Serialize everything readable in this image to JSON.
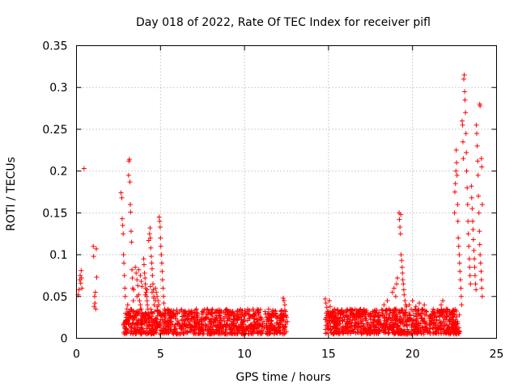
{
  "chart_data": {
    "type": "scatter",
    "title": "Day 018 of 2022, Rate Of TEC Index for receiver pifl",
    "xlabel": "GPS time / hours",
    "ylabel": "ROTI / TECUs",
    "xlim": [
      0,
      25
    ],
    "ylim": [
      0,
      0.35
    ],
    "xticks": [
      0,
      5,
      10,
      15,
      20,
      25
    ],
    "xtick_labels": [
      "0",
      "5",
      "10",
      "15",
      "20",
      "25"
    ],
    "yticks": [
      0,
      0.05,
      0.1,
      0.15,
      0.2,
      0.25,
      0.3,
      0.35
    ],
    "ytick_labels": [
      "0",
      "0.05",
      "0.1",
      "0.15",
      "0.2",
      "0.25",
      "0.3",
      "0.35"
    ],
    "grid": true,
    "marker": "+",
    "color": "#ff0000",
    "series": [
      {
        "name": "ROTI",
        "points": [
          [
            0.1,
            0.052
          ],
          [
            0.15,
            0.058
          ],
          [
            0.2,
            0.07
          ],
          [
            0.22,
            0.075
          ],
          [
            0.25,
            0.066
          ],
          [
            0.28,
            0.081
          ],
          [
            0.3,
            0.072
          ],
          [
            0.32,
            0.06
          ],
          [
            0.45,
            0.203
          ],
          [
            1.0,
            0.11
          ],
          [
            1.02,
            0.098
          ],
          [
            1.05,
            0.038
          ],
          [
            1.08,
            0.05
          ],
          [
            1.1,
            0.042
          ],
          [
            1.12,
            0.055
          ],
          [
            1.15,
            0.035
          ],
          [
            1.18,
            0.107
          ],
          [
            1.2,
            0.073
          ],
          [
            2.65,
            0.174
          ],
          [
            2.7,
            0.168
          ],
          [
            2.72,
            0.143
          ],
          [
            2.75,
            0.135
          ],
          [
            2.78,
            0.125
          ],
          [
            2.8,
            0.1
          ],
          [
            2.82,
            0.09
          ],
          [
            2.85,
            0.075
          ],
          [
            2.88,
            0.06
          ],
          [
            2.9,
            0.05
          ],
          [
            2.92,
            0.03
          ],
          [
            2.95,
            0.025
          ],
          [
            2.98,
            0.028
          ],
          [
            3.0,
            0.035
          ],
          [
            3.02,
            0.022
          ],
          [
            3.05,
            0.04
          ],
          [
            3.08,
            0.03
          ],
          [
            3.1,
            0.195
          ],
          [
            3.12,
            0.212
          ],
          [
            3.15,
            0.214
          ],
          [
            3.18,
            0.187
          ],
          [
            3.2,
            0.16
          ],
          [
            3.22,
            0.151
          ],
          [
            3.25,
            0.128
          ],
          [
            3.28,
            0.115
          ],
          [
            3.3,
            0.082
          ],
          [
            3.32,
            0.072
          ],
          [
            3.35,
            0.06
          ],
          [
            3.38,
            0.045
          ],
          [
            3.4,
            0.032
          ],
          [
            3.42,
            0.025
          ],
          [
            3.5,
            0.085
          ],
          [
            3.55,
            0.078
          ],
          [
            3.6,
            0.07
          ],
          [
            3.65,
            0.063
          ],
          [
            3.7,
            0.052
          ],
          [
            3.75,
            0.045
          ],
          [
            3.8,
            0.04
          ],
          [
            3.85,
            0.035
          ],
          [
            3.9,
            0.03
          ],
          [
            3.95,
            0.027
          ],
          [
            4.0,
            0.095
          ],
          [
            4.02,
            0.088
          ],
          [
            4.05,
            0.078
          ],
          [
            4.08,
            0.072
          ],
          [
            4.1,
            0.065
          ],
          [
            4.12,
            0.06
          ],
          [
            4.15,
            0.055
          ],
          [
            4.18,
            0.05
          ],
          [
            4.2,
            0.045
          ],
          [
            4.22,
            0.04
          ],
          [
            4.25,
            0.035
          ],
          [
            4.28,
            0.03
          ],
          [
            4.3,
            0.117
          ],
          [
            4.35,
            0.125
          ],
          [
            4.38,
            0.132
          ],
          [
            4.4,
            0.12
          ],
          [
            4.42,
            0.108
          ],
          [
            4.45,
            0.098
          ],
          [
            4.48,
            0.09
          ],
          [
            4.5,
            0.083
          ],
          [
            4.52,
            0.075
          ],
          [
            4.55,
            0.065
          ],
          [
            4.58,
            0.058
          ],
          [
            4.6,
            0.048
          ],
          [
            4.62,
            0.04
          ],
          [
            4.65,
            0.032
          ],
          [
            4.7,
            0.06
          ],
          [
            4.75,
            0.055
          ],
          [
            4.8,
            0.05
          ],
          [
            4.85,
            0.045
          ],
          [
            4.9,
            0.04
          ],
          [
            4.92,
            0.145
          ],
          [
            4.95,
            0.14
          ],
          [
            4.98,
            0.133
          ],
          [
            5.0,
            0.12
          ],
          [
            5.02,
            0.11
          ],
          [
            5.05,
            0.1
          ],
          [
            5.08,
            0.09
          ],
          [
            5.1,
            0.08
          ],
          [
            5.12,
            0.07
          ],
          [
            5.15,
            0.06
          ],
          [
            5.18,
            0.05
          ],
          [
            5.2,
            0.042
          ],
          [
            5.25,
            0.035
          ],
          [
            5.3,
            0.03
          ],
          [
            3.4,
            0.058
          ],
          [
            3.6,
            0.05
          ],
          [
            3.7,
            0.082
          ],
          [
            3.8,
            0.075
          ],
          [
            3.85,
            0.068
          ],
          [
            3.9,
            0.062
          ],
          [
            4.1,
            0.052
          ],
          [
            4.2,
            0.058
          ],
          [
            4.4,
            0.062
          ],
          [
            4.5,
            0.055
          ],
          [
            4.6,
            0.05
          ],
          [
            4.7,
            0.045
          ],
          [
            4.8,
            0.038
          ],
          [
            12.3,
            0.048
          ],
          [
            12.35,
            0.045
          ],
          [
            12.4,
            0.04
          ],
          [
            12.45,
            0.032
          ],
          [
            12.5,
            0.025
          ],
          [
            12.55,
            0.02
          ],
          [
            14.8,
            0.047
          ],
          [
            14.85,
            0.042
          ],
          [
            14.9,
            0.037
          ],
          [
            14.95,
            0.032
          ],
          [
            15.0,
            0.028
          ],
          [
            15.05,
            0.045
          ],
          [
            15.1,
            0.038
          ],
          [
            15.15,
            0.03
          ],
          [
            15.2,
            0.024
          ],
          [
            15.3,
            0.03
          ],
          [
            15.35,
            0.035
          ],
          [
            15.4,
            0.028
          ],
          [
            18.3,
            0.04
          ],
          [
            18.5,
            0.045
          ],
          [
            18.6,
            0.035
          ],
          [
            18.8,
            0.055
          ],
          [
            18.9,
            0.06
          ],
          [
            19.0,
            0.05
          ],
          [
            19.05,
            0.065
          ],
          [
            19.1,
            0.072
          ],
          [
            19.2,
            0.15
          ],
          [
            19.22,
            0.142
          ],
          [
            19.25,
            0.133
          ],
          [
            19.28,
            0.125
          ],
          [
            19.3,
            0.148
          ],
          [
            19.32,
            0.1
          ],
          [
            19.35,
            0.093
          ],
          [
            19.38,
            0.085
          ],
          [
            19.4,
            0.078
          ],
          [
            19.42,
            0.07
          ],
          [
            19.45,
            0.065
          ],
          [
            19.48,
            0.058
          ],
          [
            19.5,
            0.052
          ],
          [
            19.55,
            0.045
          ],
          [
            19.6,
            0.04
          ],
          [
            19.65,
            0.038
          ],
          [
            19.8,
            0.04
          ],
          [
            20.0,
            0.045
          ],
          [
            20.2,
            0.038
          ],
          [
            20.4,
            0.042
          ],
          [
            20.5,
            0.03
          ],
          [
            20.6,
            0.035
          ],
          [
            20.7,
            0.04
          ],
          [
            21.5,
            0.03
          ],
          [
            21.7,
            0.04
          ],
          [
            21.8,
            0.045
          ],
          [
            22.0,
            0.035
          ],
          [
            22.2,
            0.03
          ],
          [
            22.4,
            0.028
          ],
          [
            22.5,
            0.15
          ],
          [
            22.52,
            0.175
          ],
          [
            22.55,
            0.185
          ],
          [
            22.58,
            0.2
          ],
          [
            22.6,
            0.225
          ],
          [
            22.62,
            0.21
          ],
          [
            22.65,
            0.195
          ],
          [
            22.68,
            0.16
          ],
          [
            22.7,
            0.14
          ],
          [
            22.72,
            0.12
          ],
          [
            22.75,
            0.11
          ],
          [
            22.78,
            0.1
          ],
          [
            22.8,
            0.09
          ],
          [
            22.82,
            0.08
          ],
          [
            22.85,
            0.07
          ],
          [
            22.88,
            0.06
          ],
          [
            22.9,
            0.05
          ],
          [
            22.92,
            0.04
          ],
          [
            22.95,
            0.26
          ],
          [
            22.98,
            0.255
          ],
          [
            23.0,
            0.235
          ],
          [
            23.02,
            0.215
          ],
          [
            23.05,
            0.31
          ],
          [
            23.08,
            0.315
          ],
          [
            23.1,
            0.295
          ],
          [
            23.12,
            0.285
          ],
          [
            23.15,
            0.27
          ],
          [
            23.18,
            0.245
          ],
          [
            23.2,
            0.222
          ],
          [
            23.22,
            0.2
          ],
          [
            23.25,
            0.18
          ],
          [
            23.28,
            0.16
          ],
          [
            23.3,
            0.14
          ],
          [
            23.32,
            0.125
          ],
          [
            23.35,
            0.11
          ],
          [
            23.38,
            0.095
          ],
          [
            23.4,
            0.085
          ],
          [
            23.42,
            0.075
          ],
          [
            23.45,
            0.065
          ],
          [
            23.5,
            0.182
          ],
          [
            23.52,
            0.168
          ],
          [
            23.55,
            0.155
          ],
          [
            23.58,
            0.14
          ],
          [
            23.6,
            0.13
          ],
          [
            23.62,
            0.118
          ],
          [
            23.65,
            0.105
          ],
          [
            23.68,
            0.095
          ],
          [
            23.7,
            0.085
          ],
          [
            23.72,
            0.075
          ],
          [
            23.75,
            0.065
          ],
          [
            23.78,
            0.058
          ],
          [
            23.8,
            0.255
          ],
          [
            23.82,
            0.245
          ],
          [
            23.85,
            0.23
          ],
          [
            23.88,
            0.212
          ],
          [
            23.9,
            0.195
          ],
          [
            23.92,
            0.17
          ],
          [
            23.95,
            0.15
          ],
          [
            23.98,
            0.128
          ],
          [
            24.0,
            0.112
          ],
          [
            24.02,
            0.1
          ],
          [
            24.05,
            0.09
          ],
          [
            24.08,
            0.08
          ],
          [
            24.1,
            0.07
          ],
          [
            24.12,
            0.06
          ],
          [
            24.15,
            0.05
          ],
          [
            24.0,
            0.28
          ],
          [
            24.02,
            0.278
          ],
          [
            24.1,
            0.215
          ],
          [
            24.12,
            0.205
          ],
          [
            24.15,
            0.16
          ]
        ],
        "baseline_band": [
          {
            "x_start": 2.8,
            "x_end": 12.5,
            "y_low": 0.005,
            "y_high": 0.035
          },
          {
            "x_start": 14.8,
            "x_end": 22.8,
            "y_low": 0.005,
            "y_high": 0.035
          }
        ]
      }
    ]
  }
}
